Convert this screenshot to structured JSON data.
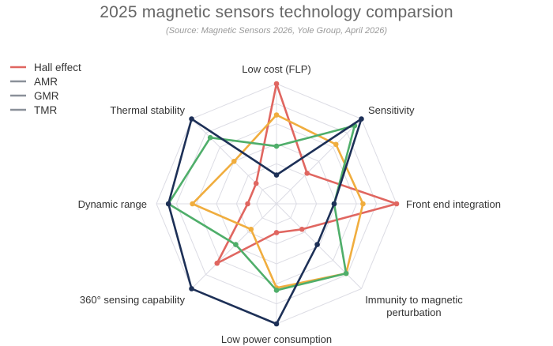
{
  "chart_data": {
    "type": "radar",
    "title": "2025 magnetic sensors technology comparsion",
    "subtitle": "(Source: Magnetic Sensors 2026, Yole Group, April 2026)",
    "axes": [
      "Low cost (FLP)",
      "Sensitivity",
      "Front end integration",
      "Immunity to magnetic perturbation",
      "Low power consumption",
      "360° sensing capability",
      "Dynamic range",
      "Thermal stability"
    ],
    "axis_label_lines": [
      [
        "Low cost (FLP)"
      ],
      [
        "Sensitivity"
      ],
      [
        "Front end integration"
      ],
      [
        "Immunity to magnetic",
        "perturbation"
      ],
      [
        "Low power consumption"
      ],
      [
        "360° sensing capability"
      ],
      [
        "Dynamic range"
      ],
      [
        "Thermal stability"
      ]
    ],
    "rlim": [
      0,
      5
    ],
    "grid": true,
    "legend_position": "top-left",
    "series": [
      {
        "name": "Hall effect",
        "color": "#e06660",
        "values": [
          5,
          1.8,
          5,
          1.5,
          1.2,
          3.5,
          1.2,
          1.2
        ]
      },
      {
        "name": "AMR",
        "color": "#f0ad3e",
        "values": [
          3.7,
          3.5,
          3.6,
          4.1,
          3.5,
          1.5,
          3.5,
          2.5
        ]
      },
      {
        "name": "GMR",
        "color": "#4fae6a",
        "values": [
          2.4,
          4.6,
          2.4,
          4.1,
          3.6,
          2.4,
          4.5,
          3.9
        ]
      },
      {
        "name": "TMR",
        "color": "#1d3057",
        "values": [
          1.2,
          5,
          2.4,
          2.4,
          5,
          5,
          4.5,
          5
        ]
      }
    ]
  },
  "colors": {
    "grid": "#dcdce4",
    "legend_marker": "#8a9099"
  }
}
